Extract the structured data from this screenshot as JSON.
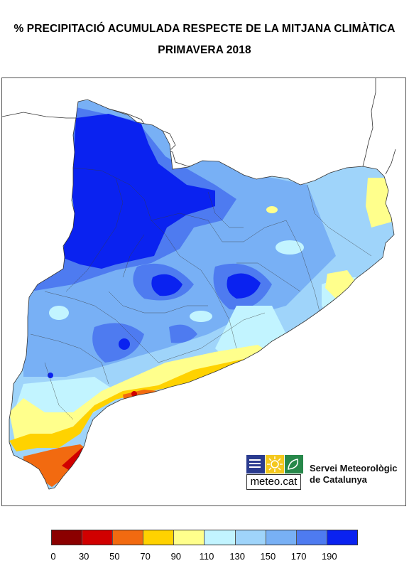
{
  "header": {
    "title": "% PRECIPITACIÓ ACUMULADA RESPECTE DE LA MITJANA CLIMÀTICA",
    "subtitle": "PRIMAVERA 2018"
  },
  "logo": {
    "wordmark": "meteo.cat",
    "org_line1": "Servei Meteorològic",
    "org_line2": "de Catalunya"
  },
  "legend": {
    "classes": [
      {
        "range": "0-30",
        "color": "#8b0000"
      },
      {
        "range": "30-50",
        "color": "#d10000"
      },
      {
        "range": "50-70",
        "color": "#f26a10"
      },
      {
        "range": "70-90",
        "color": "#ffd200"
      },
      {
        "range": "90-110",
        "color": "#ffff8c"
      },
      {
        "range": "110-130",
        "color": "#c2f4ff"
      },
      {
        "range": "130-150",
        "color": "#9fd4fa"
      },
      {
        "range": "150-170",
        "color": "#78b0f5"
      },
      {
        "range": "170-190",
        "color": "#4e7bf0"
      },
      {
        "range": ">190",
        "color": "#0a22f0"
      }
    ],
    "labels": [
      "0",
      "30",
      "50",
      "70",
      "90",
      "110",
      "130",
      "150",
      "170",
      "190"
    ]
  }
}
